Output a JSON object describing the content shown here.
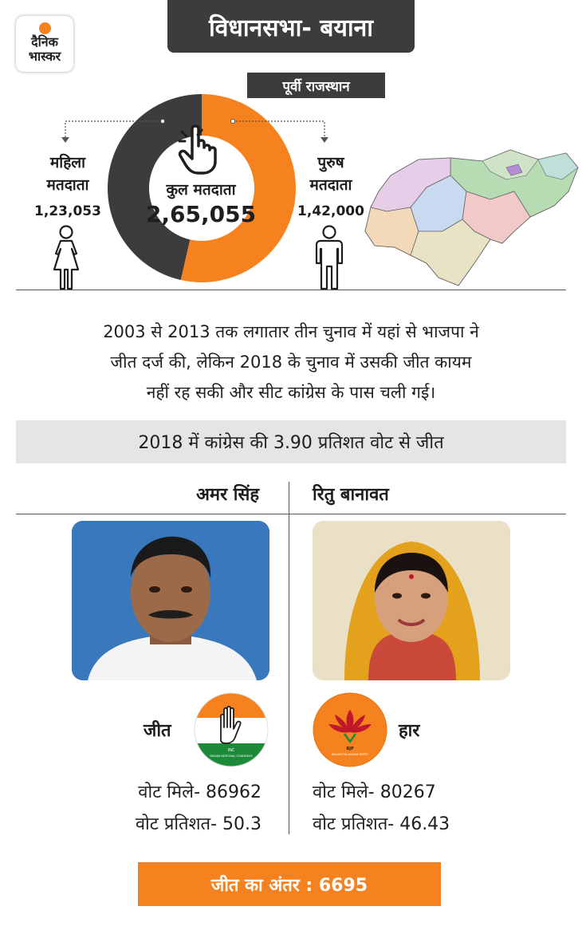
{
  "logo": {
    "line1": "दैनिक",
    "line2": "भास्कर"
  },
  "header": {
    "title": "विधानसभा- बयाना",
    "region": "पूर्वी राजस्थान"
  },
  "voters": {
    "female": {
      "label1": "महिला",
      "label2": "मतदाता",
      "count": "1,23,053"
    },
    "male": {
      "label1": "पुरुष",
      "label2": "मतदाता",
      "count": "1,42,000"
    },
    "total": {
      "label": "कुल मतदाता",
      "count": "2,65,055"
    },
    "donut": {
      "female_value": 123053,
      "male_value": 142000,
      "female_color": "#3c3c3c",
      "male_color": "#f5821f"
    }
  },
  "summary": {
    "line1": "2003 से 2013 तक लगातार तीन चुनाव में यहां से भाजपा ने",
    "line2": "जीत दर्ज की, लेकिन 2018 के चुनाव में उसकी जीत कायम",
    "line3": "नहीं रह सकी और सीट कांग्रेस के पास चली गई।"
  },
  "result_banner": "2018 में कांग्रेस की 3.90 प्रतिशत वोट से जीत",
  "candidates": {
    "winner": {
      "name": "अमर सिंह",
      "status": "जीत",
      "party_logo_text": "INC",
      "party_logo_sub": "INDIAN NATIONAL CONGRESS",
      "votes": "वोट मिले- 86962",
      "percent": "वोट प्रतिशत- 50.3"
    },
    "loser": {
      "name": "रितु बानावत",
      "status": "हार",
      "party_logo_text": "BJP",
      "party_logo_sub": "BHARATIYA JANATA PARTY",
      "votes": "वोट मिले- 80267",
      "percent": "वोट प्रतिशत- 46.43"
    }
  },
  "margin": "जीत का अंतर : 6695",
  "colors": {
    "accent": "#f5821f",
    "dark": "#3c3c3c",
    "banner_bg": "#e5e5e5"
  }
}
